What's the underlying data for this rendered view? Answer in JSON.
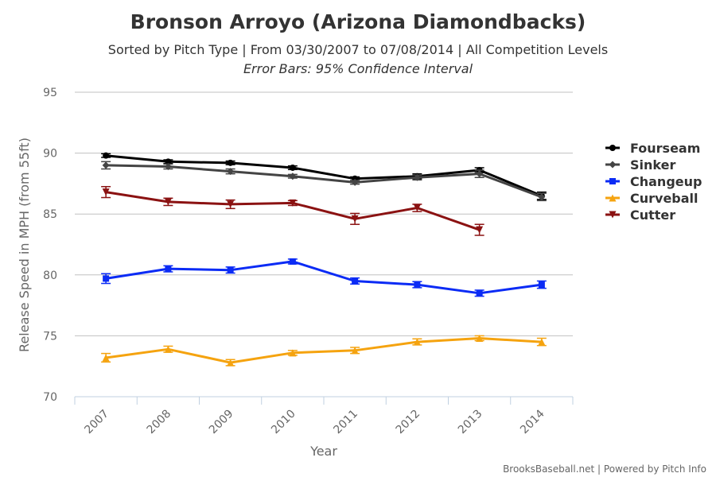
{
  "page": {
    "title": "Bronson Arroyo (Arizona Diamondbacks)",
    "subtitle": "Sorted by Pitch Type | From 03/30/2007 to 07/08/2014 | All Competition Levels",
    "subtitle2": "Error Bars: 95% Confidence Interval",
    "credits": "BrooksBaseball.net | Powered by Pitch Info"
  },
  "chart_data": {
    "type": "line",
    "title": "Bronson Arroyo (Arizona Diamondbacks)",
    "xlabel": "Year",
    "ylabel": "Release Speed in MPH (from 55ft)",
    "categories": [
      "2007",
      "2008",
      "2009",
      "2010",
      "2011",
      "2012",
      "2013",
      "2014"
    ],
    "ylim": [
      70,
      95
    ],
    "yticks": [
      70,
      75,
      80,
      85,
      90,
      95
    ],
    "grid": true,
    "legend_position": "right",
    "error_bars": true,
    "series": [
      {
        "name": "Fourseam",
        "color": "#000000",
        "marker": "circle",
        "values": [
          89.8,
          89.3,
          89.2,
          88.8,
          87.9,
          88.1,
          88.6,
          86.5
        ],
        "errors": [
          0.15,
          0.15,
          0.15,
          0.15,
          0.15,
          0.2,
          0.2,
          0.3
        ]
      },
      {
        "name": "Sinker",
        "color": "#444444",
        "marker": "diamond",
        "values": [
          89.0,
          88.9,
          88.5,
          88.1,
          87.6,
          88.0,
          88.3,
          86.4
        ],
        "errors": [
          0.3,
          0.2,
          0.2,
          0.15,
          0.15,
          0.2,
          0.3,
          0.3
        ]
      },
      {
        "name": "Changeup",
        "color": "#0b2bf5",
        "marker": "square",
        "values": [
          79.7,
          80.5,
          80.4,
          81.1,
          79.5,
          79.2,
          78.5,
          79.2
        ],
        "errors": [
          0.4,
          0.25,
          0.25,
          0.2,
          0.25,
          0.25,
          0.25,
          0.3
        ]
      },
      {
        "name": "Curveball",
        "color": "#f5a30f",
        "marker": "triangle",
        "values": [
          73.2,
          73.9,
          72.8,
          73.6,
          73.8,
          74.5,
          74.8,
          74.5
        ],
        "errors": [
          0.35,
          0.25,
          0.25,
          0.2,
          0.25,
          0.25,
          0.2,
          0.3
        ]
      },
      {
        "name": "Cutter",
        "color": "#8b1212",
        "marker": "triangle-down",
        "values": [
          86.8,
          86.0,
          85.8,
          85.9,
          84.6,
          85.5,
          null,
          null
        ],
        "errors": [
          0.45,
          0.3,
          0.35,
          0.2,
          0.45,
          0.3,
          null,
          null
        ],
        "extra": {
          "2013": 83.7
        }
      }
    ]
  }
}
